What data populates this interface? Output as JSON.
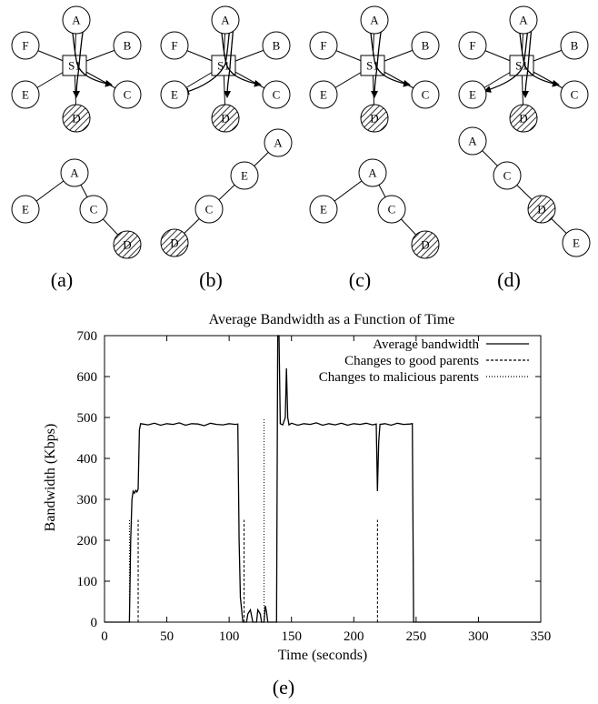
{
  "panels": [
    {
      "label": "(a)",
      "star": {
        "center": "S1",
        "leaves": [
          "A",
          "B",
          "C",
          "D",
          "E",
          "F"
        ],
        "malicious": [
          "D"
        ]
      },
      "tree": {
        "nodes": [
          "A",
          "E",
          "C",
          "D"
        ],
        "edges": [
          [
            "A",
            "E"
          ],
          [
            "A",
            "C"
          ],
          [
            "C",
            "D"
          ]
        ],
        "malicious": [
          "D"
        ]
      }
    },
    {
      "label": "(b)",
      "star": {
        "center": "S1",
        "leaves": [
          "A",
          "B",
          "C",
          "D",
          "E",
          "F"
        ],
        "malicious": [
          "D"
        ]
      },
      "tree": {
        "nodes": [
          "A",
          "E",
          "C",
          "D"
        ],
        "edges": [
          [
            "A",
            "E"
          ],
          [
            "E",
            "C"
          ],
          [
            "C",
            "D"
          ]
        ],
        "malicious": [
          "D"
        ]
      }
    },
    {
      "label": "(c)",
      "star": {
        "center": "S1",
        "leaves": [
          "A",
          "B",
          "C",
          "D",
          "E",
          "F"
        ],
        "malicious": [
          "D"
        ]
      },
      "tree": {
        "nodes": [
          "A",
          "E",
          "C",
          "D"
        ],
        "edges": [
          [
            "A",
            "E"
          ],
          [
            "A",
            "C"
          ],
          [
            "C",
            "D"
          ]
        ],
        "malicious": [
          "D"
        ]
      }
    },
    {
      "label": "(d)",
      "star": {
        "center": "S1",
        "leaves": [
          "A",
          "B",
          "C",
          "D",
          "E",
          "F"
        ],
        "malicious": [
          "D"
        ]
      },
      "tree": {
        "nodes": [
          "A",
          "C",
          "D",
          "E"
        ],
        "edges": [
          [
            "A",
            "C"
          ],
          [
            "C",
            "D"
          ],
          [
            "D",
            "E"
          ]
        ],
        "malicious": [
          "D"
        ]
      }
    }
  ],
  "chart_label": "(e)",
  "chart_data": {
    "type": "line",
    "title": "Average Bandwidth as a Function of Time",
    "xlabel": "Time (seconds)",
    "ylabel": "Bandwidth (Kbps)",
    "xlim": [
      0,
      350
    ],
    "ylim": [
      0,
      700
    ],
    "xticks": [
      0,
      50,
      100,
      150,
      200,
      250,
      300,
      350
    ],
    "yticks": [
      0,
      100,
      200,
      300,
      400,
      500,
      600,
      700
    ],
    "legend_position": "top-right",
    "series": [
      {
        "name": "Average bandwidth",
        "style": "solid",
        "points": [
          [
            0,
            0
          ],
          [
            20,
            0
          ],
          [
            21,
            200
          ],
          [
            22,
            300
          ],
          [
            23,
            320
          ],
          [
            24,
            315
          ],
          [
            25,
            322
          ],
          [
            26,
            318
          ],
          [
            27,
            325
          ],
          [
            28,
            470
          ],
          [
            29,
            485
          ],
          [
            35,
            482
          ],
          [
            40,
            486
          ],
          [
            45,
            481
          ],
          [
            50,
            485
          ],
          [
            55,
            483
          ],
          [
            60,
            487
          ],
          [
            65,
            481
          ],
          [
            70,
            485
          ],
          [
            75,
            484
          ],
          [
            80,
            480
          ],
          [
            85,
            486
          ],
          [
            90,
            483
          ],
          [
            95,
            482
          ],
          [
            100,
            485
          ],
          [
            105,
            483
          ],
          [
            107,
            484
          ],
          [
            108,
            200
          ],
          [
            109,
            60
          ],
          [
            110,
            30
          ],
          [
            111,
            0
          ],
          [
            114,
            0
          ],
          [
            115,
            20
          ],
          [
            117,
            30
          ],
          [
            119,
            0
          ],
          [
            122,
            0
          ],
          [
            123,
            30
          ],
          [
            125,
            20
          ],
          [
            126,
            0
          ],
          [
            128,
            0
          ],
          [
            129,
            40
          ],
          [
            130,
            25
          ],
          [
            131,
            0
          ],
          [
            138,
            0
          ],
          [
            139,
            700
          ],
          [
            140,
            700
          ],
          [
            141,
            485
          ],
          [
            143,
            482
          ],
          [
            145,
            500
          ],
          [
            146,
            620
          ],
          [
            147,
            500
          ],
          [
            148,
            482
          ],
          [
            150,
            486
          ],
          [
            155,
            481
          ],
          [
            160,
            485
          ],
          [
            165,
            483
          ],
          [
            170,
            487
          ],
          [
            175,
            481
          ],
          [
            180,
            485
          ],
          [
            185,
            482
          ],
          [
            190,
            486
          ],
          [
            195,
            481
          ],
          [
            200,
            485
          ],
          [
            205,
            483
          ],
          [
            210,
            486
          ],
          [
            215,
            482
          ],
          [
            218,
            484
          ],
          [
            219,
            320
          ],
          [
            220,
            440
          ],
          [
            221,
            483
          ],
          [
            225,
            485
          ],
          [
            230,
            481
          ],
          [
            235,
            486
          ],
          [
            240,
            483
          ],
          [
            245,
            484
          ],
          [
            247,
            485
          ],
          [
            248,
            0
          ],
          [
            350,
            0
          ]
        ]
      },
      {
        "name": "Changes to good parents",
        "style": "dashed",
        "impulses": [
          [
            27,
            250
          ],
          [
            112,
            250
          ],
          [
            219,
            250
          ]
        ]
      },
      {
        "name": "Changes to malicious parents",
        "style": "dotted",
        "impulses": [
          [
            20,
            250
          ],
          [
            128,
            500
          ]
        ]
      }
    ]
  },
  "colors": {
    "line": "#000000",
    "hatch": "#000000",
    "background": "#ffffff"
  }
}
